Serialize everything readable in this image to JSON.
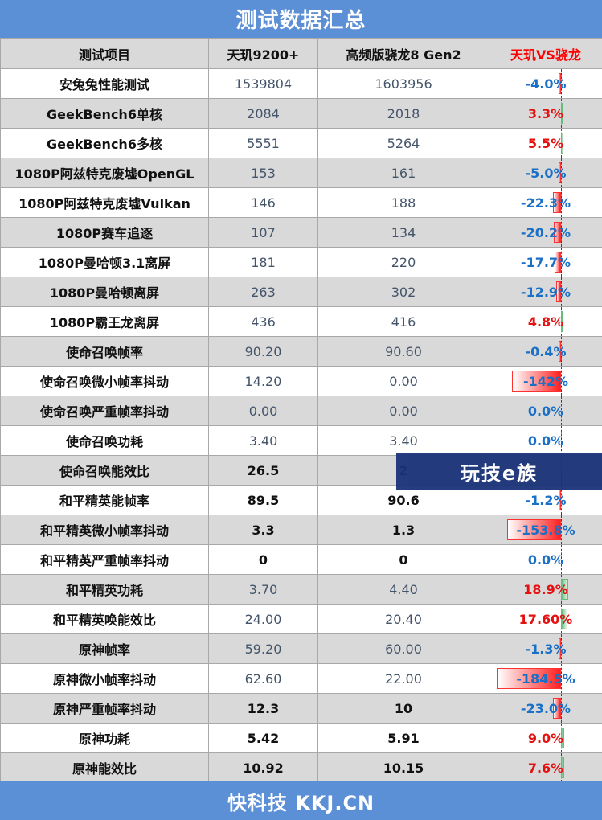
{
  "title": "测试数据汇总",
  "footer": "快科技 KKJ.CN",
  "watermark": "玩技e族",
  "headers": [
    "测试项目",
    "天玑9200+",
    "高频版骁龙8 Gen2",
    "天玑VS骁龙"
  ],
  "rows": [
    {
      "name": "安兔兔性能测试",
      "a": "1539804",
      "b": "1603956",
      "diff": "-4.0%",
      "pct": -4.0,
      "bold": false
    },
    {
      "name": "GeekBench6单核",
      "a": "2084",
      "b": "2018",
      "diff": "3.3%",
      "pct": 3.3,
      "bold": false
    },
    {
      "name": "GeekBench6多核",
      "a": "5551",
      "b": "5264",
      "diff": "5.5%",
      "pct": 5.5,
      "bold": false
    },
    {
      "name": "1080P阿兹特克废墟OpenGL",
      "a": "153",
      "b": "161",
      "diff": "-5.0%",
      "pct": -5.0,
      "bold": false
    },
    {
      "name": "1080P阿兹特克废墟Vulkan",
      "a": "146",
      "b": "188",
      "diff": "-22.3%",
      "pct": -22.3,
      "bold": false
    },
    {
      "name": "1080P赛车追逐",
      "a": "107",
      "b": "134",
      "diff": "-20.2%",
      "pct": -20.2,
      "bold": false
    },
    {
      "name": "1080P曼哈顿3.1离屏",
      "a": "181",
      "b": "220",
      "diff": "-17.7%",
      "pct": -17.7,
      "bold": false
    },
    {
      "name": "1080P曼哈顿离屏",
      "a": "263",
      "b": "302",
      "diff": "-12.9%",
      "pct": -12.9,
      "bold": false
    },
    {
      "name": "1080P霸王龙离屏",
      "a": "436",
      "b": "416",
      "diff": "4.8%",
      "pct": 4.8,
      "bold": false
    },
    {
      "name": "使命召唤帧率",
      "a": "90.20",
      "b": "90.60",
      "diff": "-0.4%",
      "pct": -0.4,
      "bold": false
    },
    {
      "name": "使命召唤微小帧率抖动",
      "a": "14.20",
      "b": "0.00",
      "diff": "-142%",
      "pct": -142,
      "bold": false
    },
    {
      "name": "使命召唤严重帧率抖动",
      "a": "0.00",
      "b": "0.00",
      "diff": "0.0%",
      "pct": 0,
      "bold": false
    },
    {
      "name": "使命召唤功耗",
      "a": "3.40",
      "b": "3.40",
      "diff": "0.0%",
      "pct": 0,
      "bold": false
    },
    {
      "name": "使命召唤能效比",
      "a": "26.5",
      "b": "2",
      "diff": "",
      "pct": 0,
      "bold": true
    },
    {
      "name": "和平精英能帧率",
      "a": "89.5",
      "b": "90.6",
      "diff": "-1.2%",
      "pct": -1.2,
      "bold": true
    },
    {
      "name": "和平精英微小帧率抖动",
      "a": "3.3",
      "b": "1.3",
      "diff": "-153.8%",
      "pct": -153.8,
      "bold": true
    },
    {
      "name": "和平精英严重帧率抖动",
      "a": "0",
      "b": "0",
      "diff": "0.0%",
      "pct": 0,
      "bold": true
    },
    {
      "name": "和平精英功耗",
      "a": "3.70",
      "b": "4.40",
      "diff": "18.9%",
      "pct": 18.9,
      "bold": false
    },
    {
      "name": "和平精英唤能效比",
      "a": "24.00",
      "b": "20.40",
      "diff": "17.60%",
      "pct": 17.6,
      "bold": false
    },
    {
      "name": "原神帧率",
      "a": "59.20",
      "b": "60.00",
      "diff": "-1.3%",
      "pct": -1.3,
      "bold": false
    },
    {
      "name": "原神微小帧率抖动",
      "a": "62.60",
      "b": "22.00",
      "diff": "-184.5%",
      "pct": -184.5,
      "bold": false
    },
    {
      "name": "原神严重帧率抖动",
      "a": "12.3",
      "b": "10",
      "diff": "-23.0%",
      "pct": -23.0,
      "bold": true
    },
    {
      "name": "原神功耗",
      "a": "5.42",
      "b": "5.91",
      "diff": "9.0%",
      "pct": 9.0,
      "bold": true
    },
    {
      "name": "原神能效比",
      "a": "10.92",
      "b": "10.15",
      "diff": "7.6%",
      "pct": 7.6,
      "bold": true
    }
  ]
}
